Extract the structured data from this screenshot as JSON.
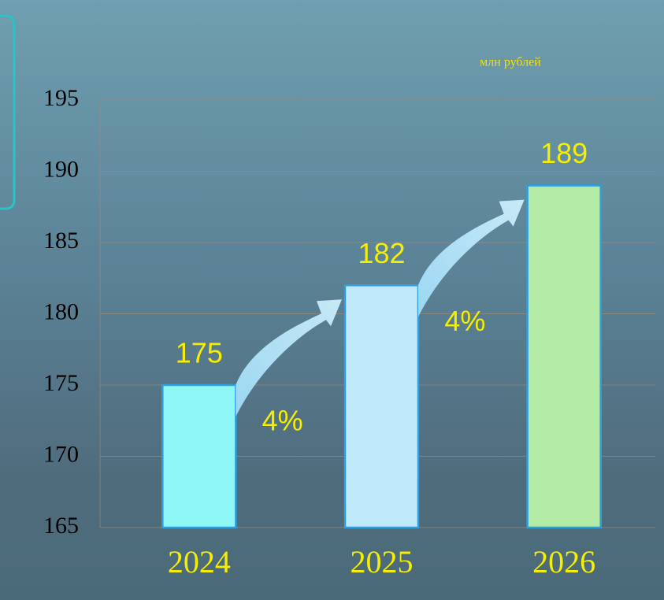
{
  "chart_data": {
    "type": "bar",
    "unit_label": "млн рублей",
    "categories": [
      "2024",
      "2025",
      "2026"
    ],
    "values": [
      175,
      182,
      189
    ],
    "colors": [
      "#8ff6f6",
      "#bfe8fb",
      "#b2eaa6"
    ],
    "growth_labels": [
      "4%",
      "4%"
    ],
    "ylim": [
      165,
      195
    ],
    "yticks": [
      165,
      170,
      175,
      180,
      185,
      190,
      195
    ],
    "grid": true
  }
}
